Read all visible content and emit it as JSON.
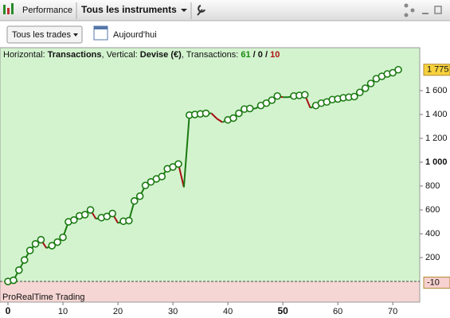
{
  "toolbar": {
    "tab": "Performance",
    "instrument": "Tous les instruments"
  },
  "controls": {
    "filter": "Tous les trades",
    "period": "Aujourd'hui"
  },
  "chart_data": {
    "type": "line",
    "info": [
      {
        "text": "Horizontal: "
      },
      {
        "text": "Transactions",
        "bold": true
      },
      {
        "text": ", Vertical: "
      },
      {
        "text": "Devise (€)",
        "bold": true
      },
      {
        "text": ", Transactions: "
      },
      {
        "text": "61",
        "bold": true,
        "color": "#1a8a10"
      },
      {
        "text": " / ",
        "bold": true
      },
      {
        "text": "0",
        "bold": true
      },
      {
        "text": " / ",
        "bold": true
      },
      {
        "text": "10",
        "bold": true,
        "color": "#b01010"
      }
    ],
    "footer": "ProRealTime Trading",
    "up_color": "#1a7a10",
    "down_color": "#a51010",
    "x": [
      0,
      1,
      2,
      3,
      4,
      5,
      6,
      7,
      8,
      9,
      10,
      11,
      12,
      13,
      14,
      15,
      16,
      17,
      18,
      19,
      20,
      21,
      22,
      23,
      24,
      25,
      26,
      27,
      28,
      29,
      30,
      31,
      32,
      33,
      34,
      35,
      36,
      37,
      38,
      39,
      40,
      41,
      42,
      43,
      44,
      45,
      46,
      47,
      48,
      49,
      50,
      51,
      52,
      53,
      54,
      55,
      56,
      57,
      58,
      59,
      60,
      61,
      62,
      63,
      64,
      65,
      66,
      67,
      68,
      69,
      70,
      71
    ],
    "values": [
      0,
      10,
      95,
      180,
      260,
      315,
      350,
      280,
      300,
      330,
      370,
      500,
      515,
      550,
      560,
      600,
      525,
      535,
      545,
      570,
      490,
      505,
      510,
      675,
      715,
      805,
      835,
      860,
      880,
      945,
      960,
      985,
      790,
      1395,
      1400,
      1405,
      1410,
      1410,
      1365,
      1335,
      1355,
      1370,
      1410,
      1445,
      1450,
      1450,
      1475,
      1495,
      1520,
      1555,
      1545,
      1545,
      1555,
      1560,
      1565,
      1455,
      1475,
      1495,
      1505,
      1525,
      1530,
      1540,
      1545,
      1550,
      1585,
      1620,
      1660,
      1700,
      1720,
      1740,
      1750,
      1775
    ],
    "xlim": [
      -1.45,
      74.9
    ],
    "xticks": [
      0,
      10,
      20,
      30,
      40,
      50,
      60,
      70
    ],
    "xticks_bold": [
      0,
      50
    ],
    "ylim": [
      -173,
      1960
    ],
    "yticks": [
      200,
      400,
      600,
      800,
      {
        "value": 1000,
        "label": "1 000"
      },
      {
        "value": 1200,
        "label": "1 200"
      },
      {
        "value": 1400,
        "label": "1 400"
      },
      {
        "value": 1600,
        "label": "1 600"
      }
    ],
    "yticks_bold": [
      1000
    ],
    "annotations": [
      {
        "value": 1775,
        "text": "1 775",
        "color": "#f7d23e"
      },
      {
        "value": -10,
        "text": "-10",
        "color": "#f7d0d0"
      }
    ]
  }
}
